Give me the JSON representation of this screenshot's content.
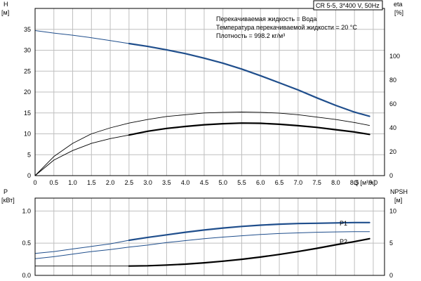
{
  "chart_data": [
    {
      "type": "line",
      "title": "CR 5-5, 3*400 V, 50Hz",
      "annotations": [
        "Перекачиваемая жидкость = Вода",
        "Температура перекачиваемой жидкости = 20 °C",
        "Плотность = 998.2 кг/м³"
      ],
      "xlabel": "Q [м³/ч]",
      "xlim": [
        0,
        9.3
      ],
      "x_ticks": [
        "0",
        "0.5",
        "1.0",
        "1.5",
        "2.0",
        "2.5",
        "3.0",
        "3.5",
        "4.0",
        "4.5",
        "5.0",
        "5.5",
        "6.0",
        "6.5",
        "7.0",
        "7.5",
        "8.0",
        "8.5",
        "9.0"
      ],
      "y_left_label": "H",
      "y_left_unit": "[м]",
      "ylim_left": [
        0,
        40
      ],
      "y_left_ticks": [
        "0",
        "5",
        "10",
        "15",
        "20",
        "25",
        "30",
        "35"
      ],
      "y_right_label": "eta",
      "y_right_unit": "[%]",
      "ylim_right": [
        0,
        140
      ],
      "y_right_ticks": [
        "0",
        "20",
        "40",
        "60",
        "80",
        "100"
      ],
      "grid": true,
      "colors": {
        "head": "#1f4e8c",
        "efficiency": "#000000"
      },
      "series": [
        {
          "axis": "left",
          "style": "head-thin",
          "x": [
            0,
            0.5,
            1.0,
            1.5,
            2.0,
            2.5
          ],
          "values": [
            34.7,
            34.1,
            33.6,
            33.0,
            32.3,
            31.6
          ]
        },
        {
          "axis": "left",
          "style": "head-bold",
          "x": [
            2.5,
            3.0,
            3.5,
            4.0,
            4.5,
            5.0,
            5.5,
            6.0,
            6.5,
            7.0,
            7.5,
            8.0,
            8.5,
            8.9
          ],
          "values": [
            31.6,
            30.9,
            30.1,
            29.2,
            28.1,
            26.9,
            25.5,
            23.9,
            22.2,
            20.5,
            18.6,
            16.8,
            15.2,
            14.2
          ]
        },
        {
          "axis": "right",
          "style": "eta-thin",
          "x": [
            0,
            0.5,
            1.0,
            1.5,
            2.0,
            2.5,
            3.0,
            3.5,
            4.0,
            4.5,
            5.0,
            5.5,
            6.0,
            6.5,
            7.0,
            7.5,
            8.0,
            8.5,
            8.9
          ],
          "values": [
            0,
            16,
            27,
            35,
            40,
            44,
            47,
            49.5,
            51,
            52.5,
            53,
            53.3,
            53,
            52.3,
            51,
            49,
            47,
            44.5,
            42
          ]
        },
        {
          "axis": "right",
          "style": "eta-thin",
          "x": [
            0,
            0.5,
            1.0,
            1.5,
            2.0,
            2.5
          ],
          "values": [
            0,
            13,
            21,
            27,
            31,
            34
          ]
        },
        {
          "axis": "right",
          "style": "eta-bold",
          "x": [
            2.5,
            3.0,
            3.5,
            4.0,
            4.5,
            5.0,
            5.5,
            6.0,
            6.5,
            7.0,
            7.5,
            8.0,
            8.5,
            8.9
          ],
          "values": [
            34,
            37.2,
            39.5,
            41.2,
            42.6,
            43.5,
            44,
            43.8,
            43,
            41.8,
            40.4,
            38.5,
            36.5,
            34.5
          ]
        }
      ]
    },
    {
      "type": "line",
      "xlim": [
        0,
        9.3
      ],
      "y_left_label": "P",
      "y_left_unit": "[кВт]",
      "ylim_left": [
        0,
        1.2
      ],
      "y_left_ticks": [
        "0.0",
        "0.5",
        "1.0"
      ],
      "y_right_label": "NPSH",
      "y_right_unit": "[м]",
      "ylim_right": [
        0,
        12
      ],
      "y_right_ticks": [
        "0",
        "5",
        "10"
      ],
      "grid": true,
      "colors": {
        "power": "#1f4e8c",
        "npsh": "#000000"
      },
      "series": [
        {
          "name": "P1",
          "axis": "left",
          "style": "power-thin",
          "x": [
            0,
            0.5,
            1.0,
            1.5,
            2.0,
            2.5
          ],
          "values": [
            0.34,
            0.37,
            0.41,
            0.45,
            0.49,
            0.545
          ]
        },
        {
          "axis": "left",
          "style": "power-bold",
          "x": [
            2.5,
            3.0,
            3.5,
            4.0,
            4.5,
            5.0,
            5.5,
            6.0,
            6.5,
            7.0,
            7.5,
            8.0,
            8.5,
            8.9
          ],
          "values": [
            0.545,
            0.59,
            0.63,
            0.67,
            0.705,
            0.735,
            0.76,
            0.78,
            0.795,
            0.805,
            0.81,
            0.815,
            0.82,
            0.82
          ]
        },
        {
          "name": "P2",
          "axis": "left",
          "style": "power-thin",
          "x": [
            0,
            0.5,
            1.0,
            1.5,
            2.0,
            2.5,
            3.0,
            3.5,
            4.0,
            4.5,
            5.0,
            5.5,
            6.0,
            6.5,
            7.0,
            7.5,
            8.0,
            8.5,
            8.9
          ],
          "values": [
            0.26,
            0.29,
            0.33,
            0.37,
            0.4,
            0.44,
            0.47,
            0.51,
            0.54,
            0.57,
            0.595,
            0.615,
            0.635,
            0.65,
            0.66,
            0.67,
            0.675,
            0.68,
            0.68
          ]
        },
        {
          "axis": "right",
          "style": "npsh-thin",
          "x": [
            0,
            0.5,
            1.0,
            1.5,
            2.0,
            2.5
          ],
          "values": [
            1.45,
            1.45,
            1.45,
            1.45,
            1.45,
            1.45
          ]
        },
        {
          "axis": "right",
          "style": "npsh-bold",
          "x": [
            2.5,
            3.0,
            3.5,
            4.0,
            4.5,
            5.0,
            5.5,
            6.0,
            6.5,
            7.0,
            7.5,
            8.0,
            8.5,
            8.9
          ],
          "values": [
            1.45,
            1.5,
            1.6,
            1.75,
            1.95,
            2.2,
            2.5,
            2.85,
            3.25,
            3.7,
            4.2,
            4.75,
            5.25,
            5.7
          ]
        }
      ]
    }
  ]
}
